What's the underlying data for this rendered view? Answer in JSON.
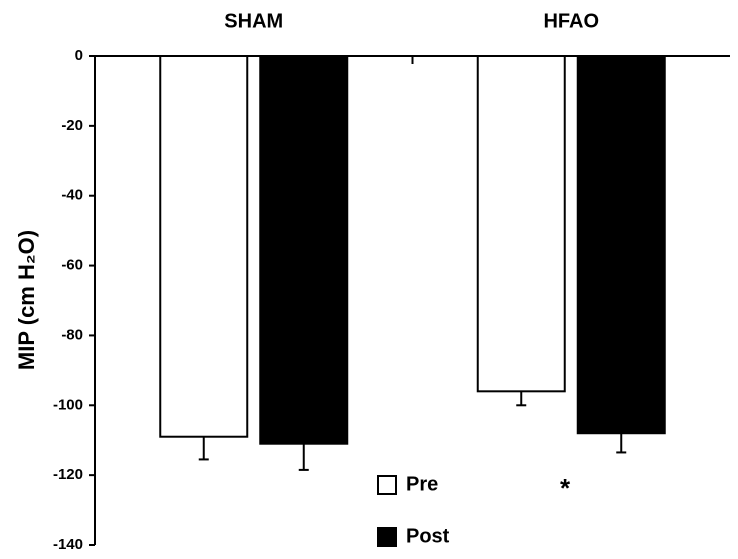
{
  "chart_data": {
    "type": "bar",
    "ylabel": "MIP (cm H₂O)",
    "categories": [
      "SHAM",
      "HFAO"
    ],
    "series": [
      {
        "name": "Pre",
        "color": "#ffffff",
        "values": [
          -109,
          -96
        ],
        "errors": [
          6.5,
          4
        ]
      },
      {
        "name": "Post",
        "color": "#000000",
        "values": [
          -111,
          -108
        ],
        "errors": [
          7.5,
          5.5
        ]
      }
    ],
    "ylim": [
      -140,
      0
    ],
    "yticks": [
      0,
      -20,
      -40,
      -60,
      -80,
      -100,
      -120,
      -140
    ],
    "legend": "bottom",
    "annotation": "*"
  }
}
